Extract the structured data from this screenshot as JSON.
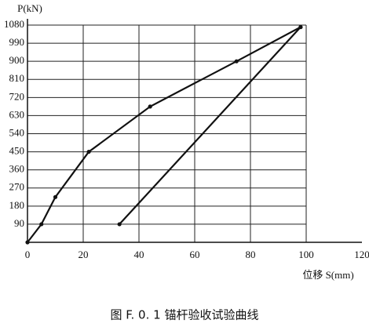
{
  "chart_data": {
    "type": "line",
    "caption": "图 F. 0. 1   锚杆验收试验曲线",
    "y_label": "P(kN)",
    "x_label": "位移 S(mm)",
    "xlim": [
      0,
      120
    ],
    "xticks": [
      0,
      20,
      40,
      60,
      80,
      100,
      120
    ],
    "ylim": [
      0,
      1080
    ],
    "yticks": [
      90,
      180,
      270,
      360,
      450,
      540,
      630,
      720,
      810,
      900,
      990,
      1080
    ],
    "grid": true,
    "series": [
      {
        "color": "#111111",
        "x": [
          0,
          5,
          10,
          22,
          44,
          75,
          98
        ],
        "values": [
          0,
          90,
          225,
          450,
          675,
          900,
          1070
        ]
      },
      {
        "color": "#111111",
        "x": [
          98,
          33
        ],
        "values": [
          1070,
          90
        ]
      }
    ]
  }
}
